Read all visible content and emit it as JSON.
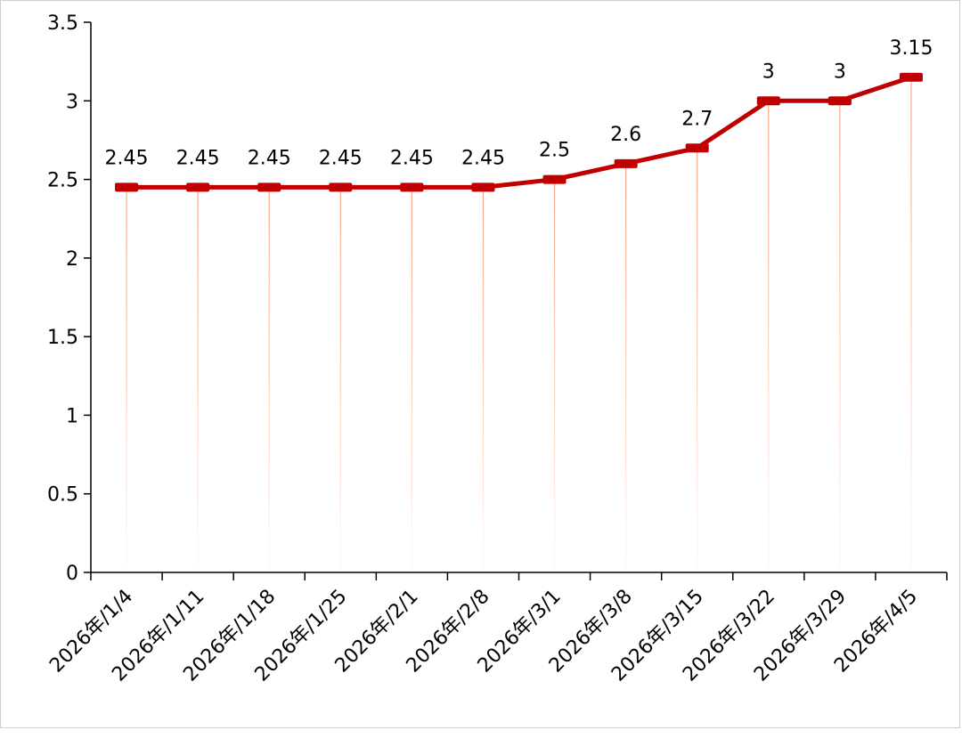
{
  "chart_data": {
    "type": "line",
    "title": "",
    "xlabel": "",
    "ylabel": "",
    "ylim": [
      0,
      3.5
    ],
    "y_ticks": [
      0,
      0.5,
      1,
      1.5,
      2,
      2.5,
      3,
      3.5
    ],
    "y_tick_labels": [
      "0",
      "0.5",
      "1",
      "1.5",
      "2",
      "2.5",
      "3",
      "3.5"
    ],
    "categories": [
      "2026年/1/4",
      "2026年/1/11",
      "2026年/1/18",
      "2026年/1/25",
      "2026年/2/1",
      "2026年/2/8",
      "2026年/3/1",
      "2026年/3/8",
      "2026年/3/15",
      "2026年/3/22",
      "2026年/3/29",
      "2026年/4/5"
    ],
    "series": [
      {
        "values": [
          2.45,
          2.45,
          2.45,
          2.45,
          2.45,
          2.45,
          2.5,
          2.6,
          2.7,
          3,
          3,
          3.15
        ],
        "data_labels": [
          "2.45",
          "2.45",
          "2.45",
          "2.45",
          "2.45",
          "2.45",
          "2.5",
          "2.6",
          "2.7",
          "3",
          "3",
          "3.15"
        ],
        "color": "#c00000"
      }
    ],
    "drop_line_color": "#f4a582",
    "grid": false,
    "legend": "none"
  }
}
